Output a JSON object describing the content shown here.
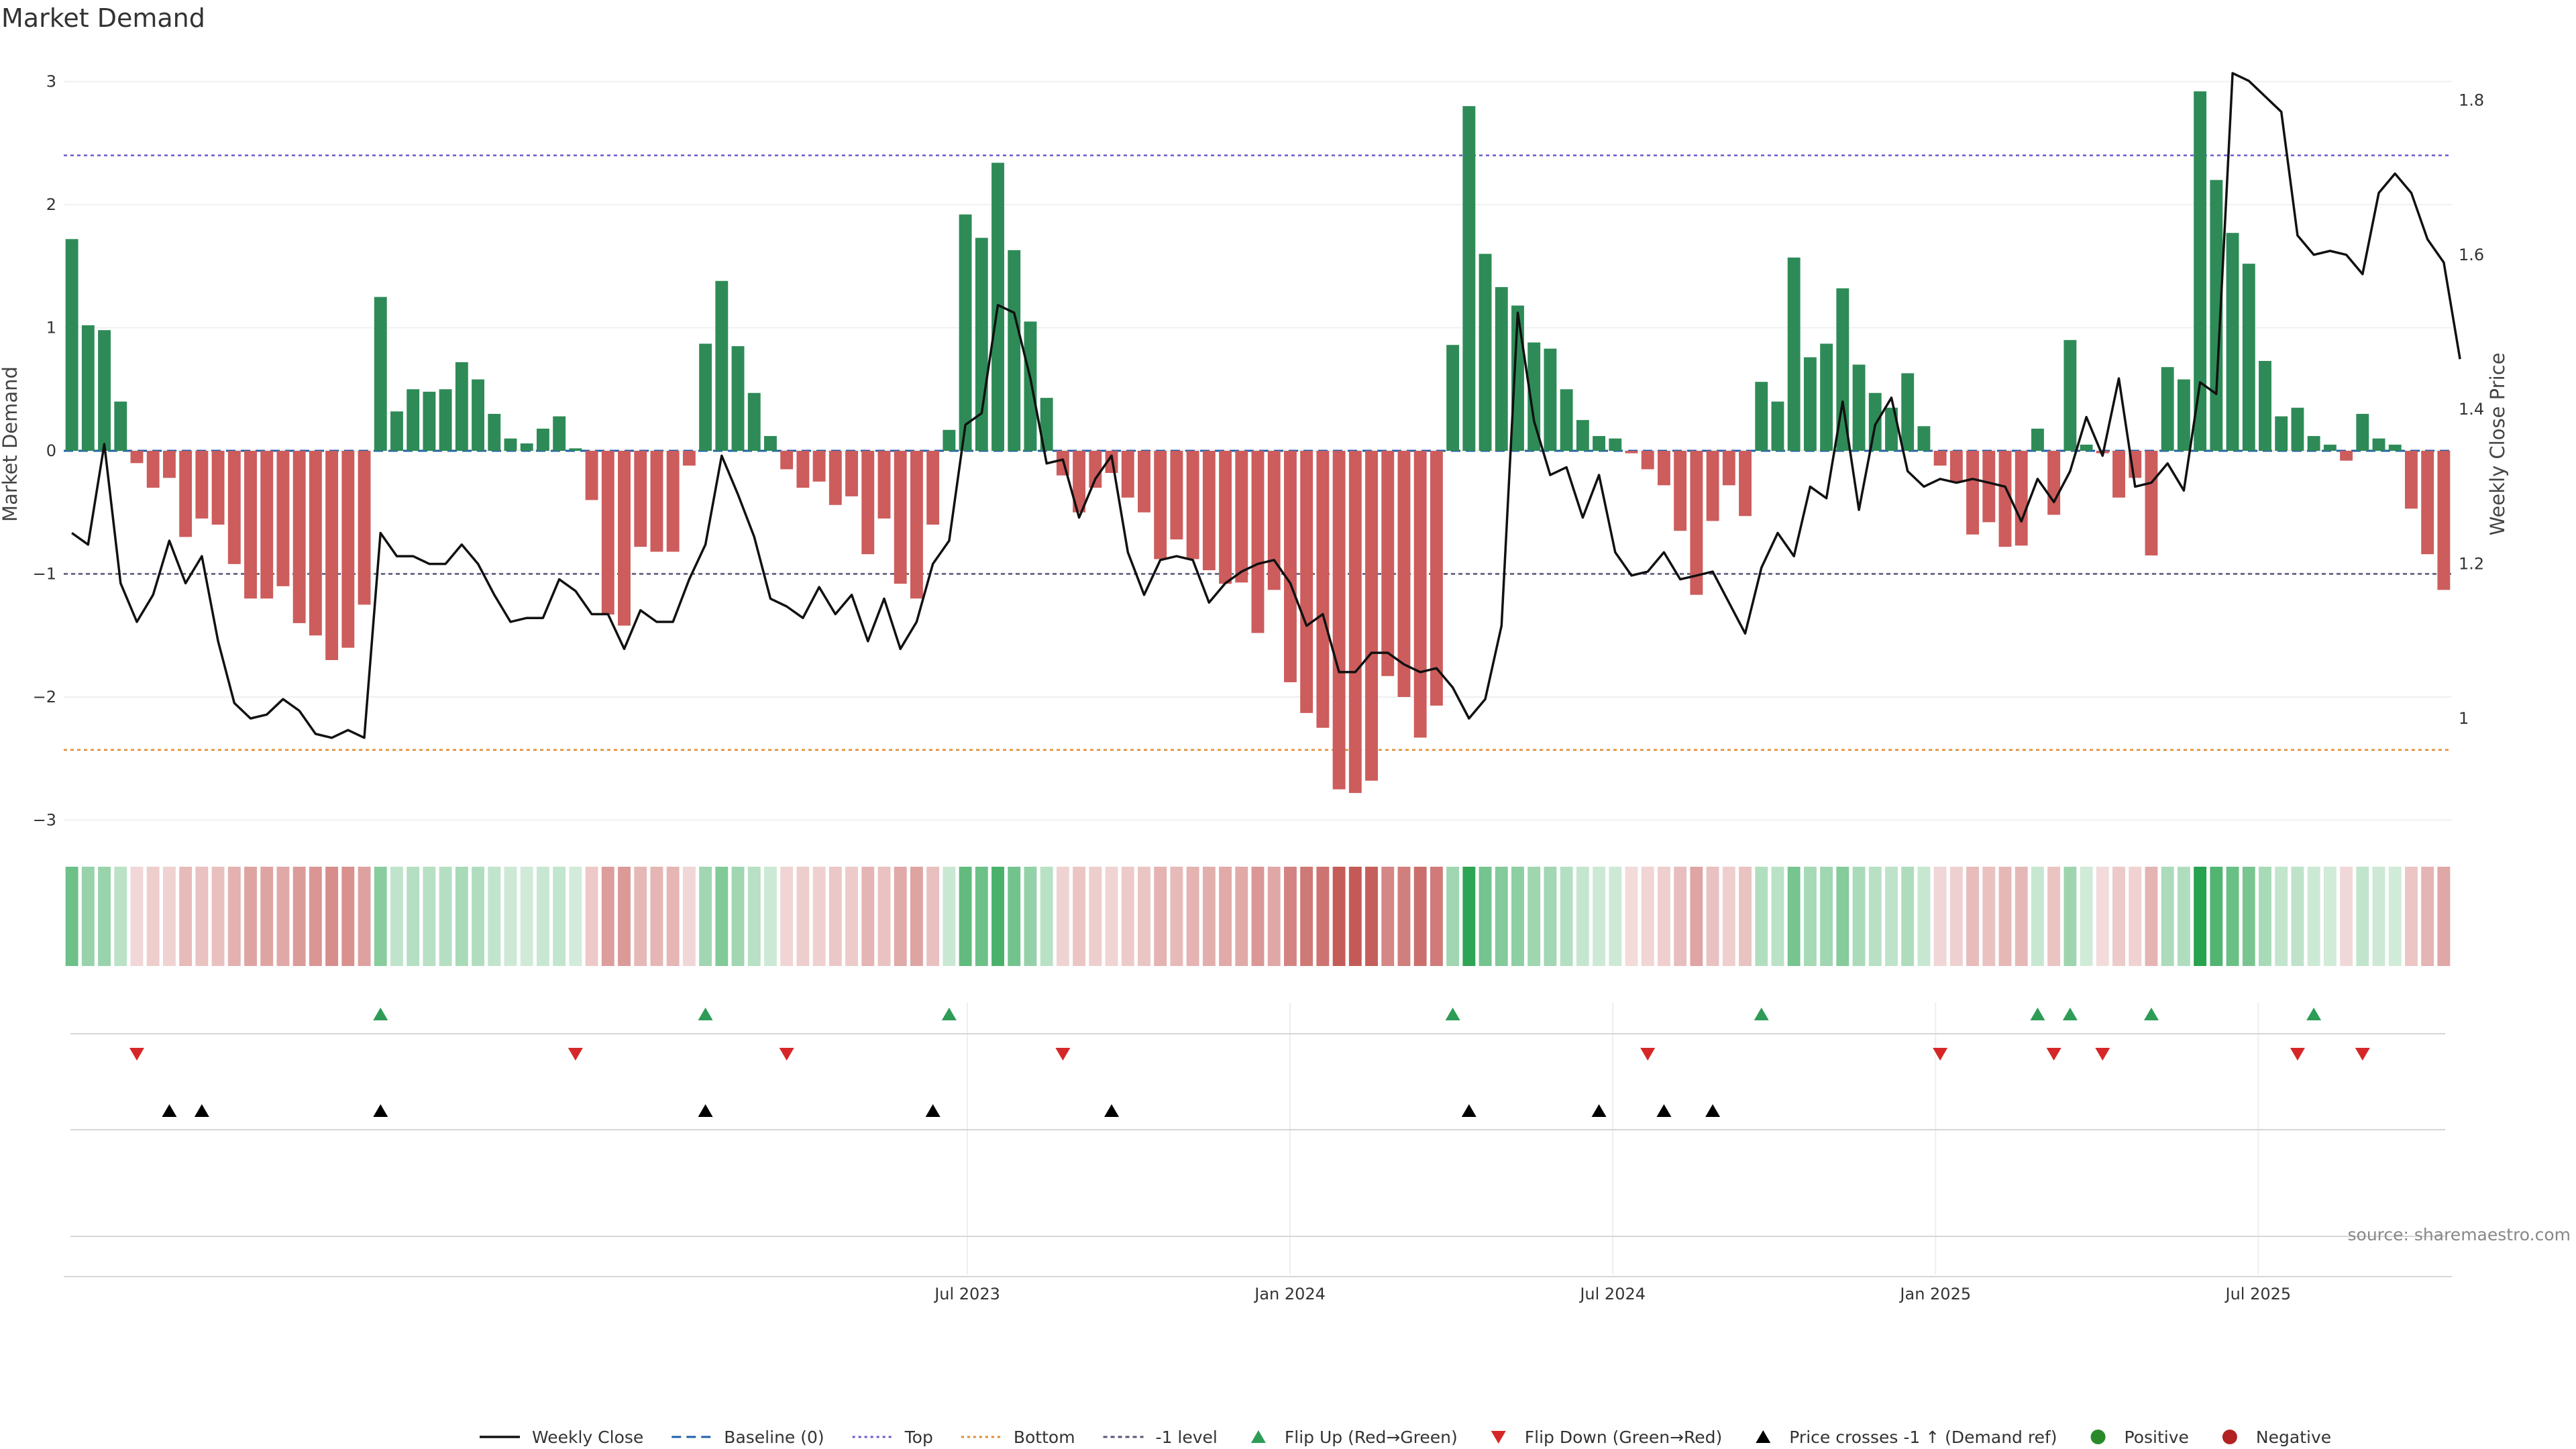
{
  "chart_data": {
    "type": "bar",
    "title": "Market Demand",
    "ylabel": "Market Demand",
    "y2label": "Weekly Close Price",
    "ylim": [
      -3.2,
      3.3
    ],
    "y2lim": [
      0.87,
      1.86
    ],
    "yticks": [
      3,
      2,
      1,
      0,
      -1,
      -2,
      -3
    ],
    "ytick_labels": [
      "3",
      "2",
      "1",
      "0",
      "−1",
      "−2",
      "−3"
    ],
    "y2ticks": [
      1.8,
      1.6,
      1.4,
      1.2,
      1.0
    ],
    "y2tick_labels": [
      "1.8",
      "1.6",
      "1.4",
      "1.2",
      "1"
    ],
    "x_month_range": [
      2022.1,
      2025.8
    ],
    "xticks": [
      2023.5,
      2024.0,
      2024.5,
      2025.0,
      2025.5
    ],
    "xtick_labels": [
      "Jul 2023",
      "Jan 2024",
      "Jul 2024",
      "Jan 2025",
      "Jul 2025"
    ],
    "levels": {
      "top": 2.4,
      "bottom": -2.43,
      "minus_one": -1.0,
      "baseline": 0
    },
    "series": [
      {
        "name": "Market Demand",
        "values": [
          1.72,
          1.02,
          0.98,
          0.4,
          -0.1,
          -0.3,
          -0.22,
          -0.7,
          -0.55,
          -0.6,
          -0.92,
          -1.2,
          -1.2,
          -1.1,
          -1.4,
          -1.5,
          -1.7,
          -1.6,
          -1.25,
          1.25,
          0.32,
          0.5,
          0.48,
          0.5,
          0.72,
          0.58,
          0.3,
          0.1,
          0.06,
          0.18,
          0.28,
          0.02,
          -0.4,
          -1.33,
          -1.42,
          -0.78,
          -0.82,
          -0.82,
          -0.12,
          0.87,
          1.38,
          0.85,
          0.47,
          0.12,
          -0.15,
          -0.3,
          -0.25,
          -0.44,
          -0.37,
          -0.84,
          -0.55,
          -1.08,
          -1.2,
          -0.6,
          0.17,
          1.92,
          1.73,
          2.34,
          1.63,
          1.05,
          0.43,
          -0.2,
          -0.5,
          -0.3,
          -0.18,
          -0.38,
          -0.5,
          -0.88,
          -0.72,
          -0.88,
          -0.97,
          -1.08,
          -1.07,
          -1.48,
          -1.13,
          -1.88,
          -2.13,
          -2.25,
          -2.75,
          -2.78,
          -2.68,
          -1.83,
          -2.0,
          -2.33,
          -2.07,
          0.86,
          2.8,
          1.6,
          1.33,
          1.18,
          0.88,
          0.83,
          0.5,
          0.25,
          0.12,
          0.1,
          -0.02,
          -0.15,
          -0.28,
          -0.65,
          -1.17,
          -0.57,
          -0.28,
          -0.53,
          0.56,
          0.4,
          1.57,
          0.76,
          0.87,
          1.32,
          0.7,
          0.47,
          0.35,
          0.63,
          0.2,
          -0.12,
          -0.25,
          -0.68,
          -0.58,
          -0.78,
          -0.77,
          0.18,
          -0.52,
          0.9,
          0.05,
          -0.02,
          -0.38,
          -0.22,
          -0.85,
          0.68,
          0.58,
          2.92,
          2.2,
          1.77,
          1.52,
          0.73,
          0.28,
          0.35,
          0.12,
          0.05,
          -0.08,
          0.3,
          0.1,
          0.05,
          -0.47,
          -0.84,
          -1.13
        ]
      },
      {
        "name": "Weekly Close",
        "axis": "right",
        "values": [
          1.24,
          1.225,
          1.355,
          1.175,
          1.125,
          1.16,
          1.23,
          1.175,
          1.21,
          1.1,
          1.02,
          1.0,
          1.005,
          1.025,
          1.01,
          0.98,
          0.975,
          0.985,
          0.975,
          1.24,
          1.21,
          1.21,
          1.2,
          1.2,
          1.225,
          1.2,
          1.16,
          1.125,
          1.13,
          1.13,
          1.18,
          1.165,
          1.135,
          1.135,
          1.09,
          1.14,
          1.125,
          1.125,
          1.18,
          1.225,
          1.34,
          1.29,
          1.235,
          1.155,
          1.145,
          1.13,
          1.17,
          1.135,
          1.16,
          1.1,
          1.155,
          1.09,
          1.125,
          1.2,
          1.23,
          1.38,
          1.395,
          1.535,
          1.525,
          1.44,
          1.33,
          1.335,
          1.26,
          1.31,
          1.34,
          1.215,
          1.16,
          1.205,
          1.21,
          1.205,
          1.15,
          1.175,
          1.19,
          1.2,
          1.205,
          1.175,
          1.12,
          1.135,
          1.06,
          1.06,
          1.085,
          1.085,
          1.07,
          1.06,
          1.065,
          1.04,
          1.0,
          1.025,
          1.12,
          1.525,
          1.385,
          1.315,
          1.325,
          1.26,
          1.315,
          1.215,
          1.185,
          1.19,
          1.215,
          1.18,
          1.185,
          1.19,
          1.15,
          1.11,
          1.195,
          1.24,
          1.21,
          1.3,
          1.285,
          1.41,
          1.27,
          1.38,
          1.415,
          1.32,
          1.3,
          1.31,
          1.305,
          1.31,
          1.305,
          1.3,
          1.255,
          1.31,
          1.28,
          1.32,
          1.39,
          1.34,
          1.44,
          1.3,
          1.305,
          1.33,
          1.295,
          1.435,
          1.42,
          1.835,
          1.825,
          1.805,
          1.785,
          1.625,
          1.6,
          1.605,
          1.6,
          1.575,
          1.68,
          1.705,
          1.68,
          1.62,
          1.59,
          1.465
        ]
      }
    ],
    "flip_up_weeks": [
      19,
      39,
      54,
      85,
      104,
      121,
      123,
      128,
      138
    ],
    "flip_down_weeks": [
      4,
      31,
      44,
      61,
      97,
      115,
      122,
      125,
      137,
      141
    ],
    "price_cross_weeks": [
      6,
      8,
      19,
      39,
      53,
      64,
      86,
      94,
      98,
      101
    ],
    "legend": [
      {
        "label": "Weekly Close",
        "kind": "line"
      },
      {
        "label": "Baseline (0)",
        "kind": "dash"
      },
      {
        "label": "Top",
        "kind": "dot-purple"
      },
      {
        "label": "Bottom",
        "kind": "dot-orange"
      },
      {
        "label": "-1 level",
        "kind": "dash-gray"
      },
      {
        "label": "Flip Up (Red→Green)",
        "kind": "tri-up-green"
      },
      {
        "label": "Flip Down (Green→Red)",
        "kind": "tri-down-red"
      },
      {
        "label": "Price crosses -1 ↑ (Demand ref)",
        "kind": "tri-up-black"
      },
      {
        "label": "Positive",
        "kind": "dot-green"
      },
      {
        "label": "Negative",
        "kind": "dot-red"
      }
    ],
    "source": "source: sharemaestro.com",
    "colors": {
      "positive": "#2e8b57",
      "negative": "#cd5c5c",
      "flip_up": "#2e9c56",
      "flip_down": "#d62728",
      "price": "#111111",
      "top": "#6a5acd",
      "bottom": "#e08a2e",
      "minus_one": "#555577",
      "baseline": "#1f5fa8",
      "positive_dot": "#2a8a2a",
      "negative_dot": "#b22222"
    }
  }
}
